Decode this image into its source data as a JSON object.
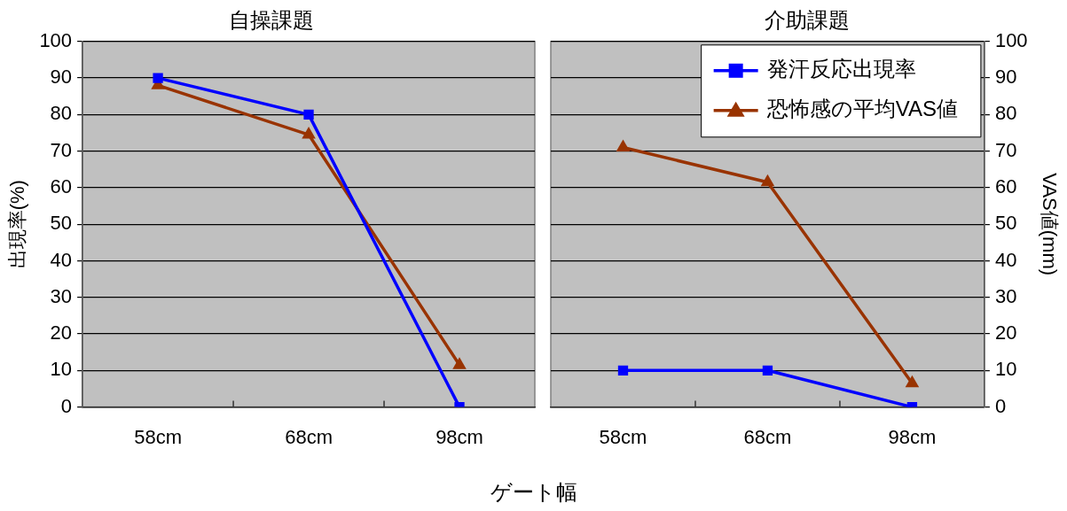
{
  "chart_data": [
    {
      "type": "line",
      "title": "自操課題",
      "xlabel": "ゲート幅",
      "ylabel": "出現率(%)",
      "categories": [
        "58cm",
        "68cm",
        "98cm"
      ],
      "ylim": [
        0,
        100
      ],
      "yticks": [
        0,
        10,
        20,
        30,
        40,
        50,
        60,
        70,
        80,
        90,
        100
      ],
      "grid": "y",
      "legend": false,
      "series": [
        {
          "color": "#0000ff",
          "marker": "square",
          "values": [
            90,
            80,
            0
          ]
        },
        {
          "color": "#993300",
          "marker": "triangle",
          "values": [
            88,
            74.5,
            11.5
          ]
        }
      ]
    },
    {
      "type": "line",
      "title": "介助課題",
      "y2label": "VAS値(mm)",
      "categories": [
        "58cm",
        "68cm",
        "98cm"
      ],
      "y2lim": [
        0,
        100
      ],
      "y2ticks": [
        0,
        10,
        20,
        30,
        40,
        50,
        60,
        70,
        80,
        90,
        100
      ],
      "grid": "y",
      "legend": "top right",
      "series": [
        {
          "name": "発汗反応出現率",
          "color": "#0000ff",
          "marker": "square",
          "axis": "y2",
          "values": [
            10,
            10,
            0
          ]
        },
        {
          "name": "恐怖感の平均VAS値",
          "color": "#993300",
          "marker": "triangle",
          "axis": "y2",
          "values": [
            71,
            61.5,
            6.5
          ]
        }
      ]
    }
  ]
}
